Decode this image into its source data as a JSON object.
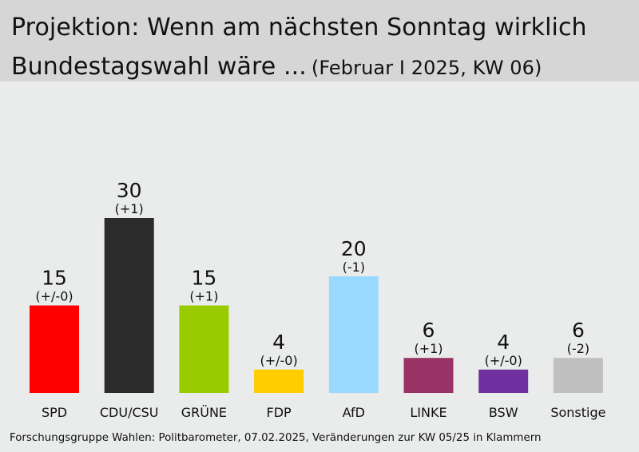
{
  "title_line1": "Projektion: Wenn am nächsten Sonntag wirklich",
  "title_line2": "Bundestagswahl wäre ...",
  "subtitle": "(Februar I 2025, KW 06)",
  "source": "Forschungsgruppe Wahlen: Politbarometer, 07.02.2025, Veränderungen zur KW 05/25 in Klammern",
  "chart_data": {
    "type": "bar",
    "title": "Projektion: Wenn am nächsten Sonntag wirklich Bundestagswahl wäre ...",
    "subtitle": "(Februar I 2025, KW 06)",
    "categories": [
      "SPD",
      "CDU/CSU",
      "GRÜNE",
      "FDP",
      "AfD",
      "LINKE",
      "BSW",
      "Sonstige"
    ],
    "values": [
      15,
      30,
      15,
      4,
      20,
      6,
      4,
      6
    ],
    "changes": [
      "(+/-0)",
      "(+1)",
      "(+1)",
      "(+/-0)",
      "(-1)",
      "(+1)",
      "(+/-0)",
      "(-2)"
    ],
    "colors": [
      "#fe0000",
      "#2b2b2b",
      "#99cc00",
      "#ffcc00",
      "#99d9ff",
      "#993366",
      "#7030a0",
      "#c0c0c0"
    ],
    "ylim": [
      0,
      30
    ],
    "grid": false,
    "legend": "none"
  }
}
